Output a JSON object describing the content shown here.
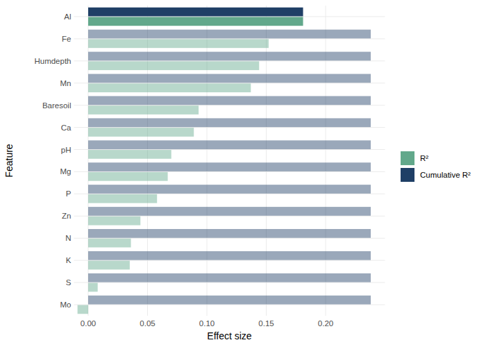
{
  "chart_data": {
    "type": "bar",
    "orientation": "horizontal",
    "x_label": "Effect size",
    "y_label": "Feature",
    "categories": [
      "Al",
      "Fe",
      "Humdepth",
      "Mn",
      "Baresoil",
      "Ca",
      "pH",
      "Mg",
      "P",
      "Zn",
      "N",
      "K",
      "S",
      "Mo"
    ],
    "series": [
      {
        "name": "R²",
        "color": "#62a88b",
        "values": [
          0.181,
          0.152,
          0.144,
          0.137,
          0.093,
          0.089,
          0.07,
          0.067,
          0.058,
          0.044,
          0.036,
          0.035,
          0.008,
          -0.009
        ]
      },
      {
        "name": "Cumulative R²",
        "color": "#1f3f66",
        "values": [
          0.181,
          0.238,
          0.238,
          0.238,
          0.238,
          0.238,
          0.238,
          0.238,
          0.238,
          0.238,
          0.238,
          0.238,
          0.238,
          0.238
        ]
      }
    ],
    "xlim": [
      -0.012,
      0.25
    ],
    "xticks": [
      {
        "value": 0,
        "label": "0.00"
      },
      {
        "value": 0.05,
        "label": "0.05"
      },
      {
        "value": 0.1,
        "label": "0.10"
      },
      {
        "value": 0.15,
        "label": "0.15"
      },
      {
        "value": 0.2,
        "label": "0.20"
      }
    ],
    "grid": true,
    "legend": "right"
  }
}
